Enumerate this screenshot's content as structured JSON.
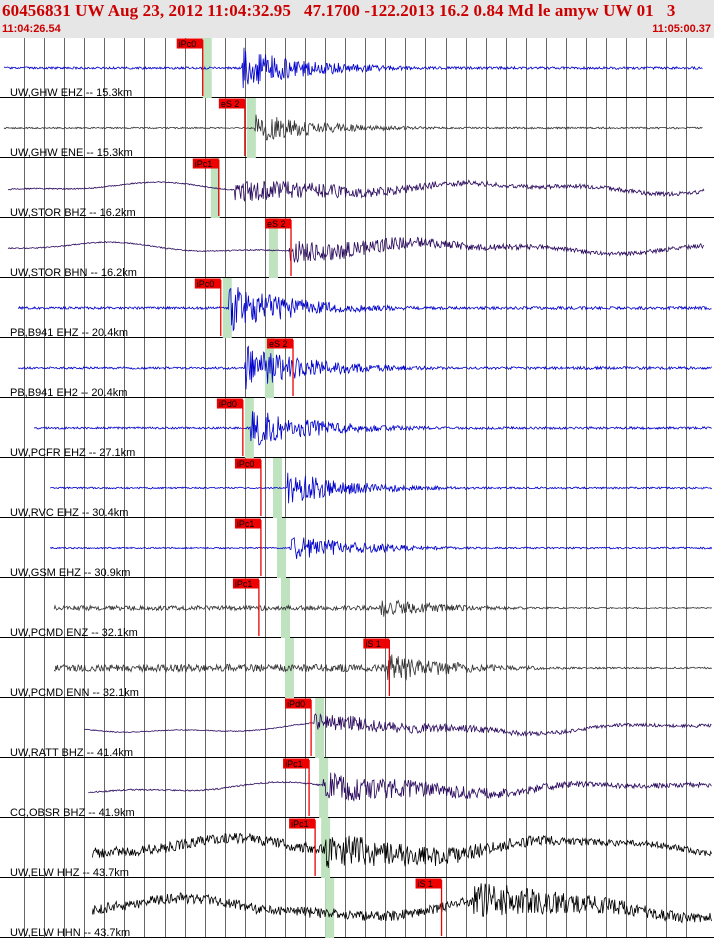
{
  "header": {
    "title": "60456831 UW Aug 23, 2012 11:04:32.95   47.1700 -122.2013 16.2 0.84 Md le amyw UW 01   3",
    "start_time": "11:04:26.54",
    "end_time": "11:05:00.37"
  },
  "colors": {
    "background": "#ffffff",
    "header_bg": "#e6e6e6",
    "header_text": "#cc0000",
    "pick": "#ee0000",
    "window_band": "#bfe3bf",
    "trace_blue": "#0000cc",
    "trace_gray": "#333333",
    "trace_purple": "#2a0a5e",
    "trace_black": "#000000"
  },
  "chart_data": {
    "type": "line",
    "title": "",
    "xlabel": "",
    "ylabel": "",
    "x_range": [
      "11:04:26.54",
      "11:05:00.37"
    ],
    "grid": true,
    "traces": [
      {
        "label": "UW,GHW EHZ -- 15.3km",
        "pick": "iPc0",
        "pick_time_s": 9.9,
        "band_time_s": 10.1,
        "start_s": 0.0,
        "end_s": 34.8,
        "onset_s": 11.8,
        "amplitude": 0.8,
        "style": "blue"
      },
      {
        "label": "UW,GHW ENE -- 15.3km",
        "pick": "eS 2",
        "pick_time_s": 12.0,
        "band_time_s": 12.3,
        "start_s": 0.0,
        "end_s": 34.8,
        "onset_s": 12.5,
        "amplitude": 0.55,
        "style": "gray"
      },
      {
        "label": "UW,STOR BHZ -- 16.2km",
        "pick": "iPc1",
        "pick_time_s": 10.7,
        "band_time_s": 10.5,
        "start_s": 0.2,
        "end_s": 34.9,
        "onset_s": 11.5,
        "amplitude": 0.45,
        "style": "purple"
      },
      {
        "label": "UW,STOR BHN -- 16.2km",
        "pick": "eS 2",
        "pick_time_s": 14.3,
        "band_time_s": 13.4,
        "start_s": 0.2,
        "end_s": 34.9,
        "onset_s": 14.2,
        "amplitude": 0.45,
        "style": "purple"
      },
      {
        "label": "PB,B941 EHZ -- 20.4km",
        "pick": "iPc0",
        "pick_time_s": 10.8,
        "band_time_s": 11.1,
        "start_s": 0.7,
        "end_s": 35.5,
        "onset_s": 11.2,
        "amplitude": 0.9,
        "style": "blue"
      },
      {
        "label": "PB,B941 EH2 -- 20.4km",
        "pick": "eS 2",
        "pick_time_s": 14.4,
        "band_time_s": 13.2,
        "start_s": 0.7,
        "end_s": 35.5,
        "onset_s": 12.0,
        "amplitude": 0.85,
        "style": "blue"
      },
      {
        "label": "UW,PCFR EHZ -- 27.1km",
        "pick": "iPd0",
        "pick_time_s": 11.9,
        "band_time_s": 12.2,
        "start_s": 1.5,
        "end_s": 36.4,
        "onset_s": 12.3,
        "amplitude": 0.75,
        "style": "blue"
      },
      {
        "label": "UW,RVC EHZ -- 30.4km",
        "pick": "iPc0",
        "pick_time_s": 12.8,
        "band_time_s": 13.6,
        "start_s": 2.3,
        "end_s": 37.0,
        "onset_s": 14.1,
        "amplitude": 0.6,
        "style": "blue"
      },
      {
        "label": "UW,GSM EHZ -- 30.9km",
        "pick": "iPc1",
        "pick_time_s": 12.8,
        "band_time_s": 13.8,
        "start_s": 2.3,
        "end_s": 37.0,
        "onset_s": 14.2,
        "amplitude": 0.55,
        "style": "blue"
      },
      {
        "label": "UW,PCMD ENZ -- 32.1km",
        "pick": "iPc1",
        "pick_time_s": 12.7,
        "band_time_s": 14.0,
        "start_s": 2.5,
        "end_s": 37.2,
        "onset_s": 18.8,
        "amplitude": 0.35,
        "style": "gray"
      },
      {
        "label": "UW,PCMD ENN -- 32.1km",
        "pick": "iS 1",
        "pick_time_s": 19.2,
        "band_time_s": 14.2,
        "start_s": 2.5,
        "end_s": 37.2,
        "onset_s": 19.1,
        "amplitude": 0.55,
        "style": "gray"
      },
      {
        "label": "UW,RATT BHZ -- 41.4km",
        "pick": "iPd0",
        "pick_time_s": 15.3,
        "band_time_s": 15.7,
        "start_s": 4.0,
        "end_s": 38.5,
        "onset_s": 15.4,
        "amplitude": 0.35,
        "style": "purple"
      },
      {
        "label": "CC,OBSR BHZ -- 41.9km",
        "pick": "iPc1",
        "pick_time_s": 15.2,
        "band_time_s": 15.9,
        "start_s": 4.2,
        "end_s": 38.5,
        "onset_s": 15.9,
        "amplitude": 0.55,
        "style": "purple"
      },
      {
        "label": "UW,ELW HHZ -- 43.7km",
        "pick": "iPc1",
        "pick_time_s": 15.5,
        "band_time_s": 16.0,
        "start_s": 4.4,
        "end_s": 38.8,
        "onset_s": 16.0,
        "amplitude": 0.7,
        "style": "black"
      },
      {
        "label": "UW,ELW HHN -- 43.7km",
        "pick": "iS 1",
        "pick_time_s": 21.8,
        "band_time_s": 16.2,
        "start_s": 4.4,
        "end_s": 38.8,
        "onset_s": 23.4,
        "amplitude": 0.7,
        "style": "black"
      }
    ]
  }
}
